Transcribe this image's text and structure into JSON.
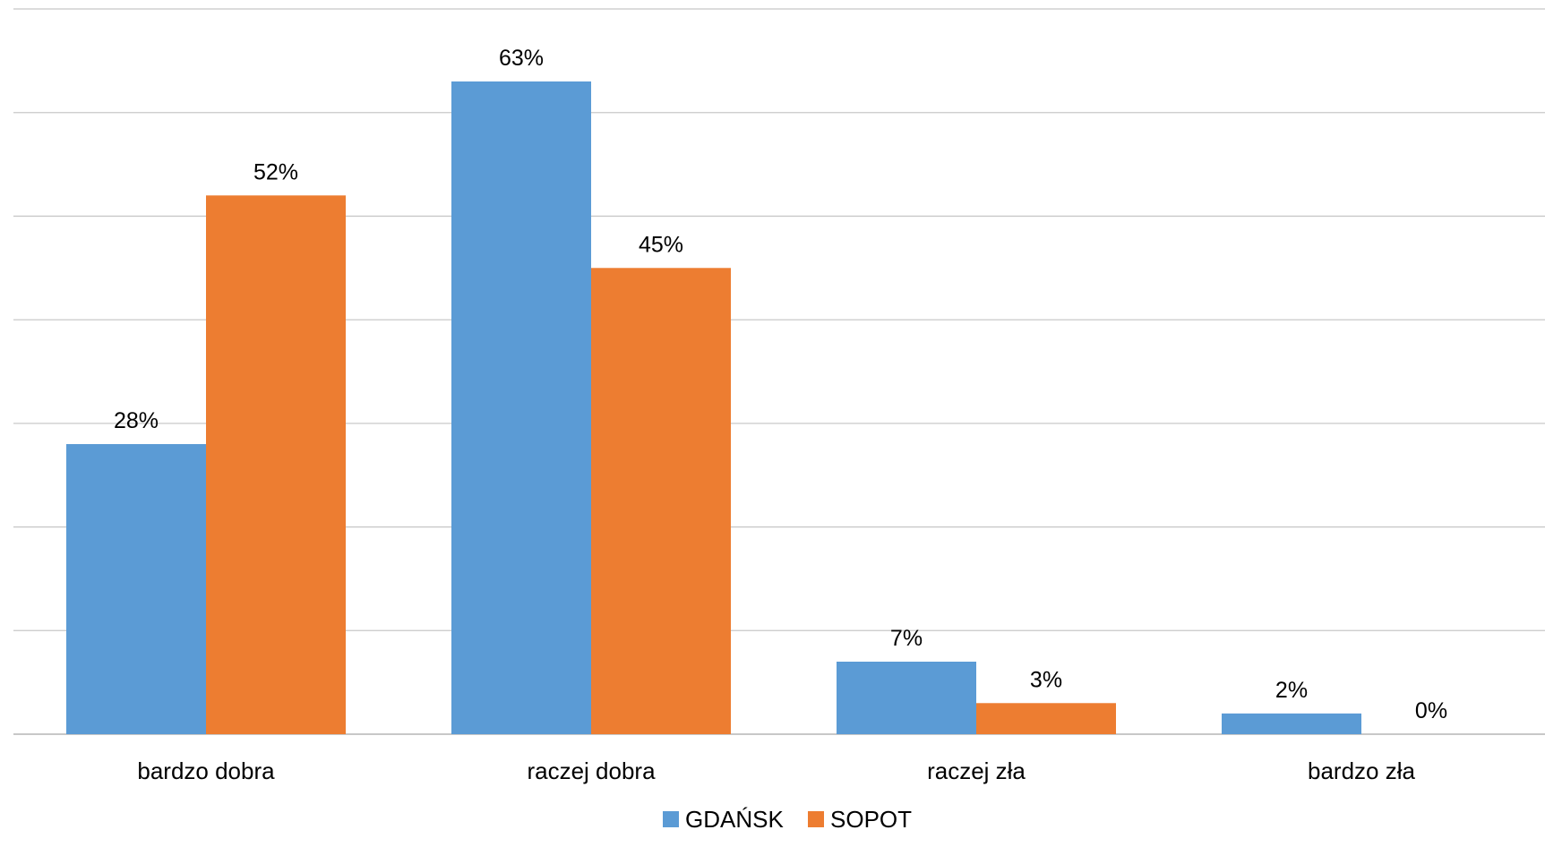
{
  "chart_data": {
    "type": "bar",
    "categories": [
      "bardzo dobra",
      "raczej dobra",
      "raczej zła",
      "bardzo zła"
    ],
    "series": [
      {
        "name": "GDAŃSK",
        "values": [
          28,
          63,
          7,
          2
        ],
        "labels": [
          "28%",
          "63%",
          "7%",
          "2%"
        ],
        "color": "#5B9BD5"
      },
      {
        "name": "SOPOT",
        "values": [
          52,
          45,
          3,
          0
        ],
        "labels": [
          "52%",
          "45%",
          "3%",
          "0%"
        ],
        "color": "#ED7D31"
      }
    ],
    "ylim": [
      0,
      70
    ],
    "ystep": 10,
    "grid": true,
    "legend_position": "bottom",
    "title": "",
    "xlabel": "",
    "ylabel": ""
  }
}
